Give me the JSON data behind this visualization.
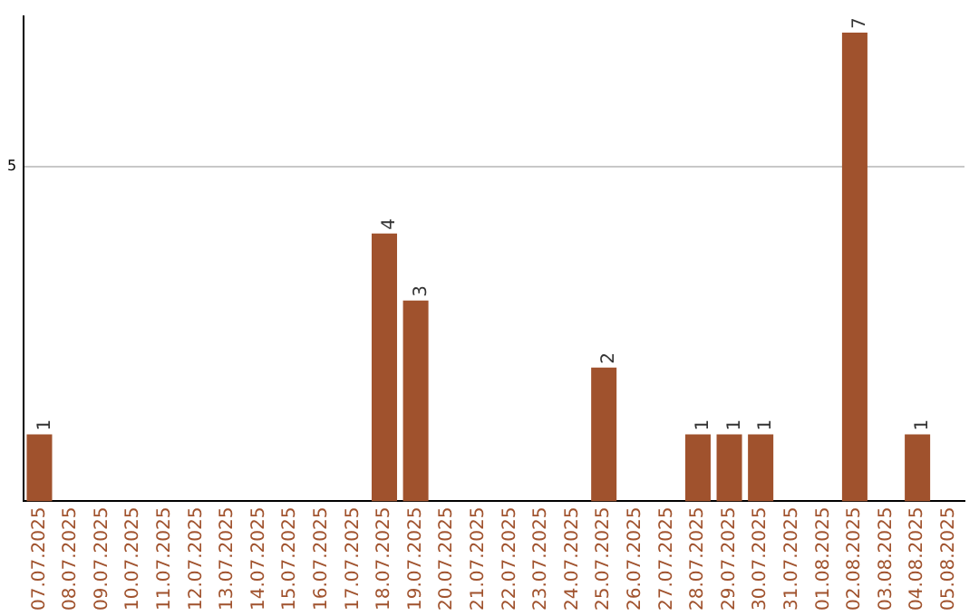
{
  "chart_data": {
    "type": "bar",
    "categories": [
      "07.07.2025",
      "08.07.2025",
      "09.07.2025",
      "10.07.2025",
      "11.07.2025",
      "12.07.2025",
      "13.07.2025",
      "14.07.2025",
      "15.07.2025",
      "16.07.2025",
      "17.07.2025",
      "18.07.2025",
      "19.07.2025",
      "20.07.2025",
      "21.07.2025",
      "22.07.2025",
      "23.07.2025",
      "24.07.2025",
      "25.07.2025",
      "26.07.2025",
      "27.07.2025",
      "28.07.2025",
      "29.07.2025",
      "30.07.2025",
      "31.07.2025",
      "01.08.2025",
      "02.08.2025",
      "03.08.2025",
      "04.08.2025",
      "05.08.2025"
    ],
    "values": [
      1,
      0,
      0,
      0,
      0,
      0,
      0,
      0,
      0,
      0,
      0,
      4,
      3,
      0,
      0,
      0,
      0,
      0,
      2,
      0,
      0,
      1,
      1,
      1,
      0,
      0,
      7,
      0,
      1,
      0
    ],
    "value_labels": [
      "1",
      null,
      null,
      null,
      null,
      null,
      null,
      null,
      null,
      null,
      null,
      "4",
      "3",
      null,
      null,
      null,
      null,
      null,
      "2",
      null,
      null,
      "1",
      "1",
      "1",
      null,
      null,
      "7",
      null,
      "1",
      null
    ],
    "color": "#a0522d",
    "ylim": [
      0,
      7.25
    ],
    "yticks": [
      5
    ],
    "grid": "y",
    "legend": false
  }
}
